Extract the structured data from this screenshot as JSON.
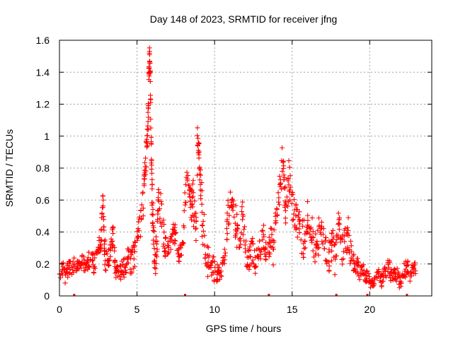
{
  "chart_data": {
    "type": "scatter",
    "title": "Day 148 of 2023, SRMTID for receiver jfng",
    "xlabel": "GPS time / hours",
    "ylabel": "SRMTID / TECUs",
    "xlim": [
      0,
      24
    ],
    "ylim": [
      0,
      1.6
    ],
    "xticks": [
      0,
      5,
      10,
      15,
      20
    ],
    "xtick_labels": [
      "0",
      "5",
      "10",
      "15",
      "20"
    ],
    "yticks": [
      0,
      0.2,
      0.4,
      0.6,
      0.8,
      1.0,
      1.2,
      1.4,
      1.6
    ],
    "ytick_labels": [
      "0",
      "0.2",
      "0.4",
      "0.6",
      "0.8",
      "1",
      "1.2",
      "1.4",
      "1.6"
    ],
    "grid": true,
    "marker": "+",
    "color": "#ff0000",
    "series": [
      {
        "name": "SRMTID",
        "x": [
          0.0,
          0.2,
          0.4,
          0.6,
          0.8,
          1.0,
          1.2,
          1.4,
          1.6,
          1.8,
          2.0,
          2.2,
          2.4,
          2.6,
          2.7,
          2.8,
          2.9,
          3.0,
          3.2,
          3.4,
          3.5,
          3.6,
          3.8,
          4.0,
          4.2,
          4.4,
          4.6,
          4.8,
          5.0,
          5.2,
          5.4,
          5.5,
          5.6,
          5.7,
          5.75,
          5.8,
          5.85,
          5.9,
          5.95,
          6.0,
          6.1,
          6.2,
          6.3,
          6.4,
          6.6,
          6.8,
          7.0,
          7.2,
          7.4,
          7.6,
          7.8,
          8.0,
          8.2,
          8.4,
          8.5,
          8.6,
          8.8,
          8.9,
          9.0,
          9.1,
          9.2,
          9.4,
          9.6,
          9.8,
          10.0,
          10.2,
          10.4,
          10.6,
          10.8,
          11.0,
          11.2,
          11.4,
          11.6,
          11.8,
          12.0,
          12.2,
          12.4,
          12.6,
          12.8,
          13.0,
          13.2,
          13.4,
          13.6,
          13.8,
          14.0,
          14.2,
          14.4,
          14.5,
          14.6,
          14.8,
          15.0,
          15.2,
          15.4,
          15.6,
          15.8,
          16.0,
          16.2,
          16.4,
          16.6,
          16.8,
          17.0,
          17.2,
          17.4,
          17.6,
          17.8,
          18.0,
          18.2,
          18.4,
          18.6,
          18.8,
          19.0,
          19.2,
          19.4,
          19.6,
          19.8,
          20.0,
          20.2,
          20.4,
          20.6,
          20.8,
          21.0,
          21.2,
          21.4,
          21.6,
          21.8,
          22.0,
          22.2,
          22.4,
          22.6,
          22.8
        ],
        "y": [
          0.14,
          0.17,
          0.12,
          0.18,
          0.16,
          0.2,
          0.17,
          0.22,
          0.19,
          0.21,
          0.24,
          0.2,
          0.23,
          0.33,
          0.38,
          0.62,
          0.3,
          0.22,
          0.25,
          0.36,
          0.38,
          0.15,
          0.12,
          0.16,
          0.18,
          0.24,
          0.21,
          0.25,
          0.3,
          0.45,
          0.62,
          0.8,
          0.9,
          1.05,
          1.25,
          1.52,
          1.4,
          0.98,
          0.7,
          0.55,
          0.3,
          0.25,
          0.35,
          0.62,
          0.5,
          0.32,
          0.28,
          0.33,
          0.42,
          0.29,
          0.26,
          0.38,
          0.78,
          0.63,
          0.55,
          0.6,
          0.45,
          0.97,
          0.9,
          0.7,
          0.5,
          0.3,
          0.22,
          0.2,
          0.16,
          0.14,
          0.13,
          0.22,
          0.4,
          0.64,
          0.55,
          0.43,
          0.35,
          0.5,
          0.28,
          0.22,
          0.3,
          0.2,
          0.25,
          0.3,
          0.38,
          0.25,
          0.35,
          0.28,
          0.55,
          0.65,
          0.87,
          0.7,
          0.45,
          0.75,
          0.55,
          0.5,
          0.45,
          0.38,
          0.35,
          0.5,
          0.45,
          0.3,
          0.32,
          0.42,
          0.38,
          0.3,
          0.25,
          0.35,
          0.22,
          0.5,
          0.3,
          0.32,
          0.4,
          0.25,
          0.2,
          0.18,
          0.15,
          0.16,
          0.12,
          0.1,
          0.08,
          0.12,
          0.14,
          0.1,
          0.15,
          0.2,
          0.13,
          0.16,
          0.12,
          0.08,
          0.15,
          0.18,
          0.14,
          0.16
        ],
        "spread": [
          0.05,
          0.05,
          0.05,
          0.05,
          0.05,
          0.05,
          0.05,
          0.05,
          0.05,
          0.05,
          0.06,
          0.06,
          0.06,
          0.08,
          0.08,
          0.05,
          0.1,
          0.06,
          0.06,
          0.08,
          0.05,
          0.06,
          0.05,
          0.06,
          0.07,
          0.08,
          0.08,
          0.08,
          0.1,
          0.12,
          0.14,
          0.1,
          0.08,
          0.1,
          0.1,
          0.05,
          0.06,
          0.1,
          0.12,
          0.14,
          0.12,
          0.1,
          0.1,
          0.12,
          0.1,
          0.08,
          0.06,
          0.06,
          0.08,
          0.06,
          0.06,
          0.12,
          0.04,
          0.12,
          0.12,
          0.14,
          0.12,
          0.05,
          0.1,
          0.14,
          0.14,
          0.12,
          0.08,
          0.08,
          0.06,
          0.05,
          0.05,
          0.08,
          0.12,
          0.05,
          0.12,
          0.12,
          0.12,
          0.08,
          0.08,
          0.08,
          0.1,
          0.07,
          0.08,
          0.1,
          0.1,
          0.08,
          0.1,
          0.1,
          0.12,
          0.12,
          0.05,
          0.12,
          0.12,
          0.1,
          0.12,
          0.12,
          0.12,
          0.12,
          0.1,
          0.1,
          0.12,
          0.1,
          0.12,
          0.1,
          0.1,
          0.1,
          0.1,
          0.12,
          0.1,
          0.05,
          0.12,
          0.12,
          0.12,
          0.08,
          0.06,
          0.06,
          0.04,
          0.05,
          0.04,
          0.04,
          0.03,
          0.04,
          0.05,
          0.04,
          0.05,
          0.05,
          0.05,
          0.05,
          0.05,
          0.04,
          0.05,
          0.05,
          0.05,
          0.05
        ]
      }
    ],
    "gap_markers_x": [
      0.95,
      8.1,
      13.5,
      17.85,
      19.85,
      22.4
    ]
  }
}
